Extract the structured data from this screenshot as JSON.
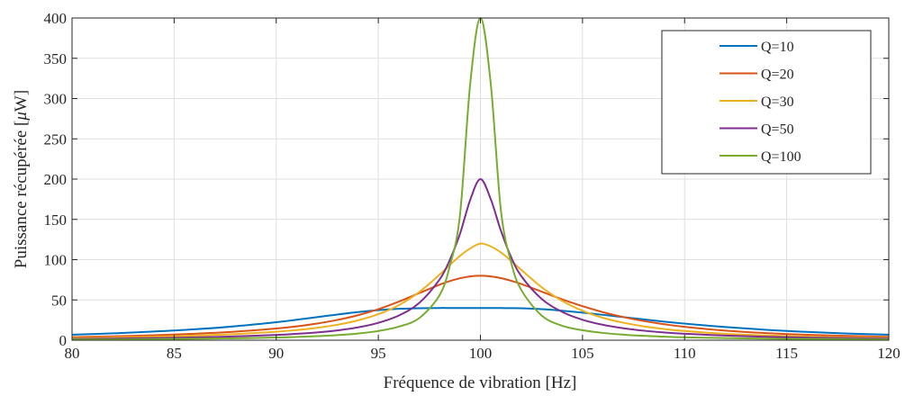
{
  "chart_data": {
    "type": "line",
    "xlabel": "Fréquence de vibration [Hz]",
    "ylabel": "Puissance récupérée [",
    "ylabel_unit_italic": "μ",
    "ylabel_unit_rest": "W]",
    "xlim": [
      80,
      120
    ],
    "ylim": [
      0,
      400
    ],
    "xticks": [
      80,
      85,
      90,
      95,
      100,
      105,
      110,
      115,
      120
    ],
    "yticks": [
      0,
      50,
      100,
      150,
      200,
      250,
      300,
      350,
      400
    ],
    "grid": true,
    "legend_position": "top-right",
    "x": [
      80,
      82,
      84,
      86,
      88,
      90,
      91,
      92,
      93,
      94,
      95,
      96,
      97,
      98,
      98.5,
      99,
      99.5,
      100,
      100.5,
      101,
      101.5,
      102,
      103,
      104,
      105,
      106,
      107,
      108,
      109,
      110,
      112,
      114,
      116,
      118,
      120
    ],
    "series": [
      {
        "name": "Q=10",
        "color": "#0072BD",
        "values": [
          6.8,
          8.5,
          10.7,
          13.5,
          17.3,
          22.3,
          25.4,
          28.6,
          31.9,
          34.9,
          37.3,
          38.9,
          39.7,
          40.0,
          40.0,
          40.0,
          40.0,
          40.0,
          40.0,
          39.9,
          39.8,
          39.6,
          38.5,
          36.6,
          34.2,
          31.5,
          28.6,
          25.8,
          23.1,
          20.6,
          16.3,
          12.9,
          10.3,
          8.3,
          6.8
        ]
      },
      {
        "name": "Q=20",
        "color": "#D95319",
        "values": [
          3.8,
          4.8,
          6.2,
          8.0,
          10.6,
          14.5,
          17.2,
          20.7,
          25.2,
          31.0,
          38.5,
          47.8,
          58.4,
          68.9,
          73.4,
          76.9,
          79.2,
          80.0,
          79.2,
          77.1,
          73.8,
          69.7,
          60.3,
          50.8,
          42.2,
          34.8,
          28.7,
          23.8,
          19.8,
          16.6,
          11.9,
          8.8,
          6.7,
          5.3,
          4.2
        ]
      },
      {
        "name": "Q=30",
        "color": "#EDB120",
        "values": [
          2.6,
          3.4,
          4.3,
          5.7,
          7.6,
          10.5,
          12.6,
          15.4,
          19.2,
          24.6,
          32.3,
          43.5,
          59.7,
          81.4,
          93.3,
          104.7,
          113.9,
          120.0,
          116.5,
          109.0,
          98.7,
          87.4,
          65.8,
          48.8,
          36.5,
          27.8,
          21.7,
          17.2,
          13.9,
          11.4,
          7.9,
          5.8,
          4.4,
          3.4,
          2.8
        ]
      },
      {
        "name": "Q=50",
        "color": "#7E2F8E",
        "values": [
          1.6,
          2.1,
          2.6,
          3.5,
          4.7,
          6.5,
          7.9,
          9.7,
          12.2,
          15.9,
          21.6,
          30.6,
          46.2,
          75.4,
          99.6,
          132.1,
          174.2,
          200.0,
          175.5,
          136.2,
          103.4,
          79.6,
          51.3,
          35.2,
          25.4,
          19.1,
          14.8,
          11.8,
          9.6,
          8.0,
          5.7,
          4.2,
          3.2,
          2.5,
          2.0
        ]
      },
      {
        "name": "Q=100",
        "color": "#77AC30",
        "values": [
          0.8,
          1.0,
          1.3,
          1.8,
          2.4,
          3.3,
          4.0,
          5.0,
          6.3,
          8.3,
          11.4,
          16.8,
          27.4,
          55.9,
          92.0,
          155.6,
          318.3,
          400.0,
          320.0,
          162.0,
          97.0,
          62.5,
          30.6,
          18.0,
          12.4,
          9.0,
          6.9,
          5.4,
          4.4,
          3.6,
          2.6,
          2.0,
          1.5,
          1.2,
          1.0
        ]
      }
    ]
  }
}
